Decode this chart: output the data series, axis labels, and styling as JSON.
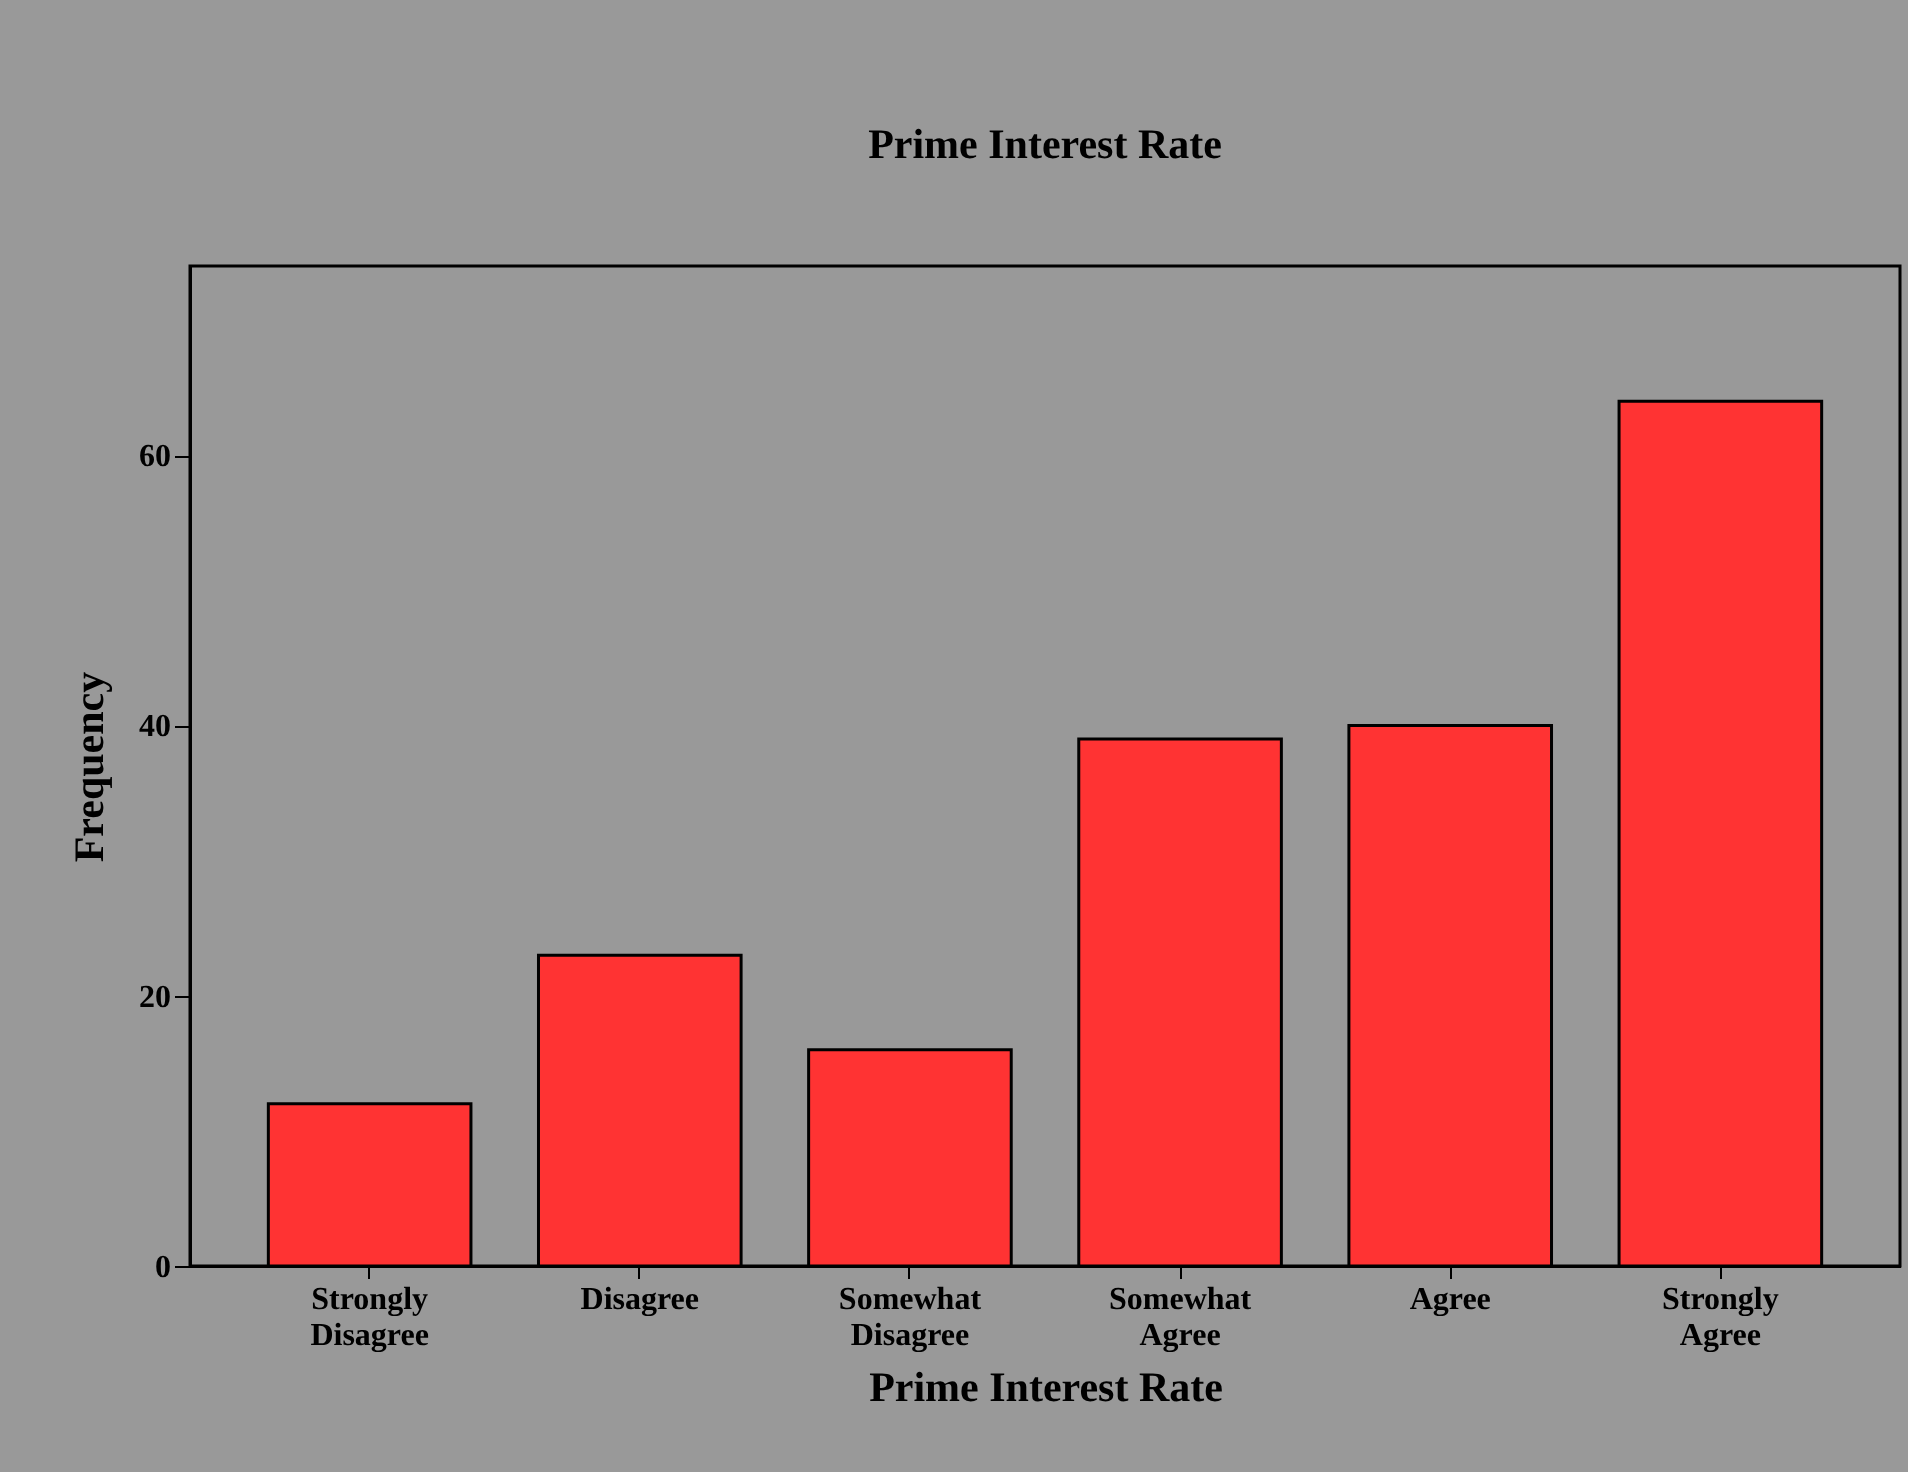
{
  "chart_data": {
    "type": "bar",
    "title": "Prime Interest Rate",
    "xlabel": "Prime Interest Rate",
    "ylabel": "Frequency",
    "categories": [
      "Strongly Disagree",
      "Disagree",
      "Somewhat Disagree",
      "Somewhat Agree",
      "Agree",
      "Strongly Agree"
    ],
    "values": [
      12,
      23,
      16,
      39,
      40,
      64
    ],
    "color": "#ff3333",
    "ylim": [
      0,
      74
    ],
    "yticks": [
      0,
      20,
      40,
      60
    ],
    "grid": false
  }
}
